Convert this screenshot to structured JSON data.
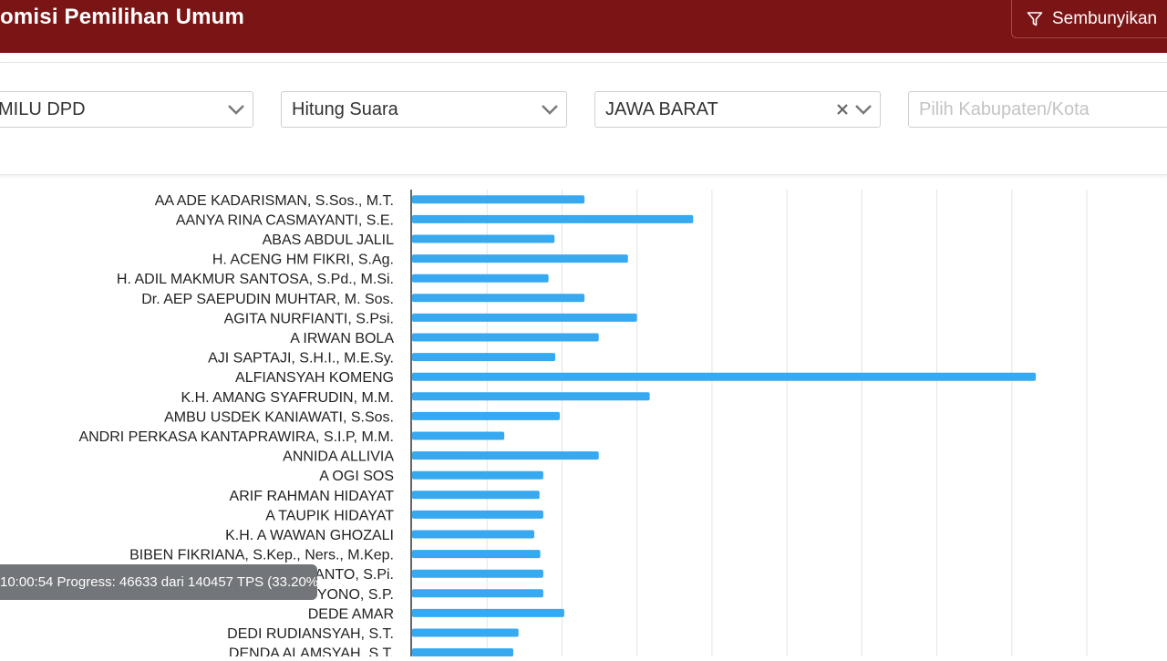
{
  "header": {
    "title": "omisi Pemilihan Umum",
    "hide_button_label": "Sembunyikan",
    "background": "#7b1515"
  },
  "filters": [
    {
      "name": "election-type",
      "value": "MILU DPD",
      "placeholder": ""
    },
    {
      "name": "data-type",
      "value": "Hitung Suara",
      "placeholder": ""
    },
    {
      "name": "province",
      "value": "JAWA BARAT",
      "placeholder": "",
      "clearable": true
    },
    {
      "name": "regency",
      "value": "",
      "placeholder": "Pilih Kabupaten/Kota"
    }
  ],
  "chart_data": {
    "type": "bar",
    "orientation": "horizontal",
    "bar_color": "#36a9f1",
    "grid": true,
    "categories": [
      "AA ADE KADARISMAN, S.Sos., M.T.",
      "AANYA RINA CASMAYANTI, S.E.",
      "ABAS ABDUL JALIL",
      "H. ACENG HM FIKRI, S.Ag.",
      "H. ADIL MAKMUR SANTOSA, S.Pd., M.Si.",
      "Dr. AEP SAEPUDIN MUHTAR, M. Sos.",
      "AGITA NURFIANTI, S.Psi.",
      "A IRWAN BOLA",
      "AJI SAPTAJI, S.H.I., M.E.Sy.",
      "ALFIANSYAH KOMENG",
      "K.H. AMANG SYAFRUDIN, M.M.",
      "AMBU USDEK KANIAWATI, S.Sos.",
      "ANDRI PERKASA KANTAPRAWIRA, S.I.P, M.M.",
      "ANNIDA ALLIVIA",
      "A OGI SOS",
      "ARIF RAHMAN HIDAYAT",
      "A TAUPIK HIDAYAT",
      "K.H. A WAWAN GHOZALI",
      "BIBEN FIKRIANA, S.Kep., Ners., M.Kep.",
      "ANTO, S.Pi.",
      "YONO, S.P.",
      "DEDE AMAR",
      "DEDI RUDIANSYAH, S.T.",
      "DENDA ALAMSYAH, S.T."
    ],
    "values": [
      2.3,
      3.75,
      1.9,
      2.88,
      1.82,
      2.3,
      3.0,
      2.49,
      1.91,
      8.32,
      3.17,
      1.97,
      1.23,
      2.49,
      1.75,
      1.7,
      1.75,
      1.63,
      1.71,
      1.75,
      1.75,
      2.03,
      1.42,
      1.35
    ],
    "xlim": [
      0,
      9
    ]
  },
  "status": {
    "progress_text": "10:00:54 Progress: 46633 dari 140457 TPS (33.20%)"
  }
}
